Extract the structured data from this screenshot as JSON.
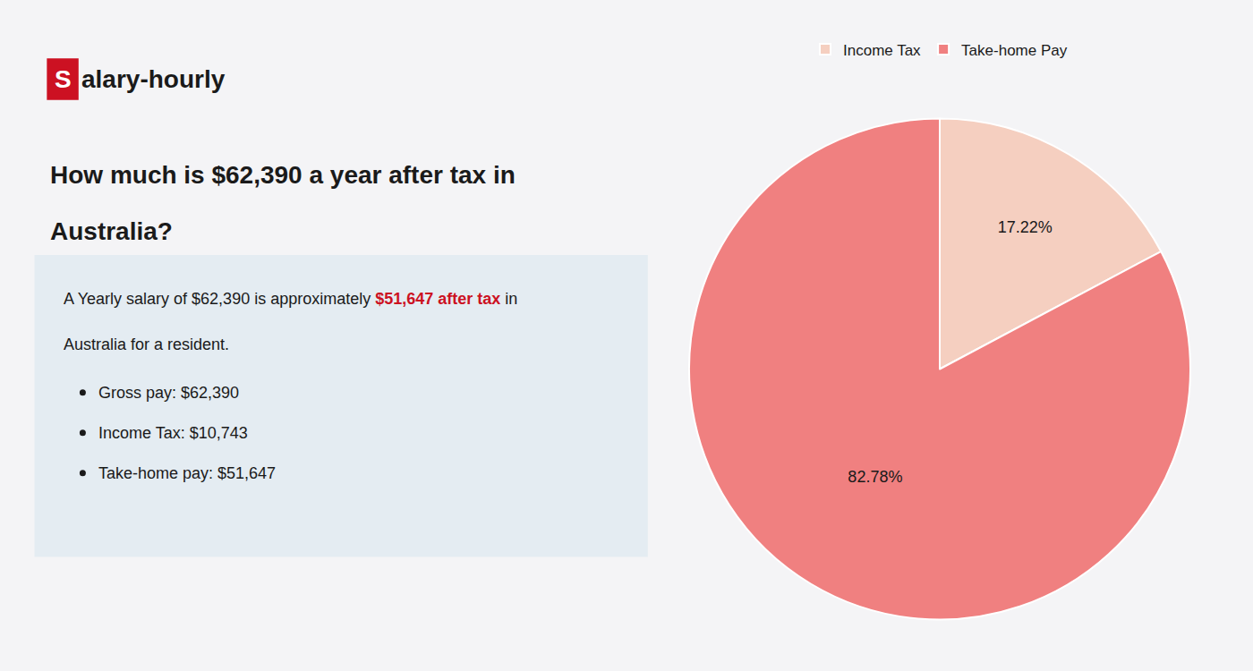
{
  "chart_data": {
    "type": "pie",
    "title": "How much is $62,390 a year after tax in\nAustralia?",
    "categories": [
      "Income Tax",
      "Take-home Pay"
    ],
    "values": [
      17.22,
      82.78
    ],
    "value_labels": [
      "17.22%",
      "82.78%"
    ],
    "colors": [
      "#f5cfc0",
      "#f08080"
    ],
    "data_labels": true,
    "legend": "top",
    "annotations": [
      "S",
      "alary-hourly",
      "A Yearly salary of $62,390 is approximately ",
      "$51,647 after tax",
      " in",
      "Australia for a resident.",
      "Gross pay: $62,390",
      "Income Tax: $10,743",
      "Take-home pay: $51,647"
    ]
  }
}
